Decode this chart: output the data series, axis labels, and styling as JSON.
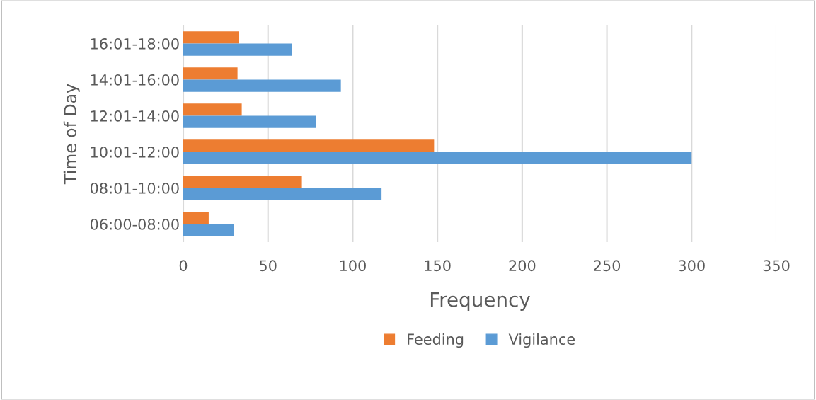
{
  "chart_data": {
    "type": "bar",
    "orientation": "horizontal",
    "xlabel": "Frequency",
    "ylabel": "Time of Day",
    "categories": [
      "16:01-18:00",
      "14:01-16:00",
      "12:01-14:00",
      "10:01-12:00",
      "08:01-10:00",
      "06:00-08:00"
    ],
    "series": [
      {
        "name": "Feeding",
        "color": "#ed7d31",
        "values": [
          33,
          32,
          34.5,
          148,
          70,
          15
        ]
      },
      {
        "name": "Vigilance",
        "color": "#5b9bd5",
        "values": [
          64,
          93,
          78.5,
          300,
          117,
          30
        ]
      }
    ],
    "xlim": [
      0,
      350
    ],
    "xticks": [
      0,
      50,
      100,
      150,
      200,
      250,
      300,
      350
    ],
    "grid": "x",
    "legend": "bottom"
  }
}
